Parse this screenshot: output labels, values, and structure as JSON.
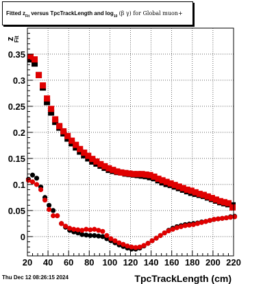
{
  "chart_data": {
    "type": "scatter",
    "title": {
      "part1": "Fitted  z",
      "sub1": "Fit",
      "part2": "  versus TpcTrackLength and log",
      "sub2": "10",
      "part3": "(β  γ) for Global muon+"
    },
    "xlabel": "TpcTrackLength (cm)",
    "ylabel": "z",
    "ylabel_sub": "Fit",
    "xlim": [
      20,
      220
    ],
    "ylim": [
      -0.037,
      0.4
    ],
    "xticks": [
      20,
      40,
      60,
      80,
      100,
      120,
      140,
      160,
      180,
      200,
      220
    ],
    "yticks": [
      0,
      0.05,
      0.1,
      0.15,
      0.2,
      0.25,
      0.3,
      0.35
    ],
    "ytick_labels": [
      "0",
      "0.05",
      "0.1",
      "0.15",
      "0.2",
      "0.25",
      "0.3",
      "0.35"
    ],
    "grid": true,
    "series": [
      {
        "marker": "square",
        "color": "#000000",
        "x": [
          23,
          27,
          31,
          35,
          39,
          43,
          47,
          51,
          55,
          59,
          63,
          67,
          71,
          75,
          79,
          83,
          87,
          91,
          95,
          99,
          103,
          107,
          111,
          115,
          119,
          123,
          127,
          131,
          135,
          139,
          143,
          147,
          151,
          155,
          159,
          163,
          167,
          171,
          175,
          179,
          183,
          187,
          191,
          195,
          199,
          203,
          207,
          211,
          215,
          219
        ],
        "y": [
          0.34,
          0.332,
          0.31,
          0.286,
          0.258,
          0.238,
          0.22,
          0.209,
          0.198,
          0.188,
          0.179,
          0.171,
          0.163,
          0.156,
          0.15,
          0.144,
          0.14,
          0.136,
          0.132,
          0.128,
          0.126,
          0.124,
          0.123,
          0.121,
          0.12,
          0.119,
          0.118,
          0.117,
          0.116,
          0.114,
          0.112,
          0.108,
          0.104,
          0.101,
          0.099,
          0.096,
          0.093,
          0.09,
          0.087,
          0.084,
          0.082,
          0.08,
          0.078,
          0.075,
          0.072,
          0.069,
          0.066,
          0.064,
          0.062,
          0.06
        ]
      },
      {
        "marker": "square",
        "color": "#e00000",
        "x": [
          23,
          27,
          31,
          35,
          39,
          43,
          47,
          51,
          55,
          59,
          63,
          67,
          71,
          75,
          79,
          83,
          87,
          91,
          95,
          99,
          103,
          107,
          111,
          115,
          119,
          123,
          127,
          131,
          135,
          139,
          143,
          147,
          151,
          155,
          159,
          163,
          167,
          171,
          175,
          179,
          183,
          187,
          191,
          195,
          199,
          203,
          207,
          211,
          215,
          219
        ],
        "y": [
          0.345,
          0.34,
          0.31,
          0.29,
          0.265,
          0.245,
          0.225,
          0.212,
          0.202,
          0.193,
          0.184,
          0.176,
          0.168,
          0.161,
          0.155,
          0.149,
          0.144,
          0.139,
          0.135,
          0.131,
          0.128,
          0.125,
          0.123,
          0.122,
          0.121,
          0.12,
          0.12,
          0.12,
          0.119,
          0.118,
          0.115,
          0.111,
          0.108,
          0.105,
          0.102,
          0.099,
          0.096,
          0.093,
          0.09,
          0.088,
          0.085,
          0.082,
          0.08,
          0.077,
          0.074,
          0.071,
          0.068,
          0.066,
          0.064,
          0.056
        ]
      },
      {
        "marker": "circle",
        "color": "#000000",
        "x": [
          21,
          25,
          29,
          33,
          37,
          41,
          45,
          49,
          53,
          57,
          61,
          65,
          69,
          73,
          77,
          81,
          85,
          89,
          93,
          97,
          101,
          105,
          109,
          113,
          117,
          121,
          125,
          129,
          133,
          137,
          141,
          145,
          149,
          153,
          157,
          161,
          165,
          169,
          173,
          177,
          181,
          185,
          189,
          193,
          197,
          201,
          205,
          209,
          213,
          217,
          221
        ],
        "y": [
          0.11,
          0.118,
          0.112,
          0.095,
          0.075,
          0.06,
          0.05,
          0.04,
          0.025,
          0.018,
          0.012,
          0.009,
          0.007,
          0.004,
          0.003,
          0.002,
          0.002,
          0.001,
          0.0,
          -0.004,
          -0.008,
          -0.012,
          -0.016,
          -0.019,
          -0.022,
          -0.024,
          -0.024,
          -0.022,
          -0.018,
          -0.013,
          -0.008,
          -0.003,
          0.002,
          0.007,
          0.012,
          0.016,
          0.019,
          0.021,
          0.023,
          0.024,
          0.025,
          0.026,
          0.028,
          0.029,
          0.031,
          0.033,
          0.034,
          0.035,
          0.036,
          0.038,
          0.039
        ]
      },
      {
        "marker": "circle",
        "color": "#e00000",
        "x": [
          21,
          25,
          29,
          33,
          37,
          41,
          45,
          49,
          53,
          57,
          61,
          65,
          69,
          73,
          77,
          81,
          85,
          89,
          93,
          97,
          101,
          105,
          109,
          113,
          117,
          121,
          125,
          129,
          133,
          137,
          141,
          145,
          149,
          153,
          157,
          161,
          165,
          169,
          173,
          177,
          181,
          185,
          189,
          193,
          197,
          201,
          205,
          209,
          213,
          217,
          221
        ],
        "y": [
          0.108,
          0.105,
          0.1,
          0.09,
          0.07,
          0.052,
          0.04,
          0.04,
          0.025,
          0.02,
          0.016,
          0.014,
          0.013,
          0.012,
          0.014,
          0.013,
          0.014,
          0.012,
          0.01,
          0.002,
          -0.004,
          -0.008,
          -0.012,
          -0.015,
          -0.018,
          -0.02,
          -0.021,
          -0.02,
          -0.017,
          -0.013,
          -0.008,
          -0.003,
          0.002,
          0.007,
          0.011,
          0.014,
          0.017,
          0.019,
          0.021,
          0.022,
          0.023,
          0.025,
          0.027,
          0.029,
          0.031,
          0.033,
          0.034,
          0.035,
          0.036,
          0.037,
          0.038
        ]
      }
    ]
  },
  "footer": {
    "datestamp": "Thu Dec 12 08:26:15 2024"
  }
}
